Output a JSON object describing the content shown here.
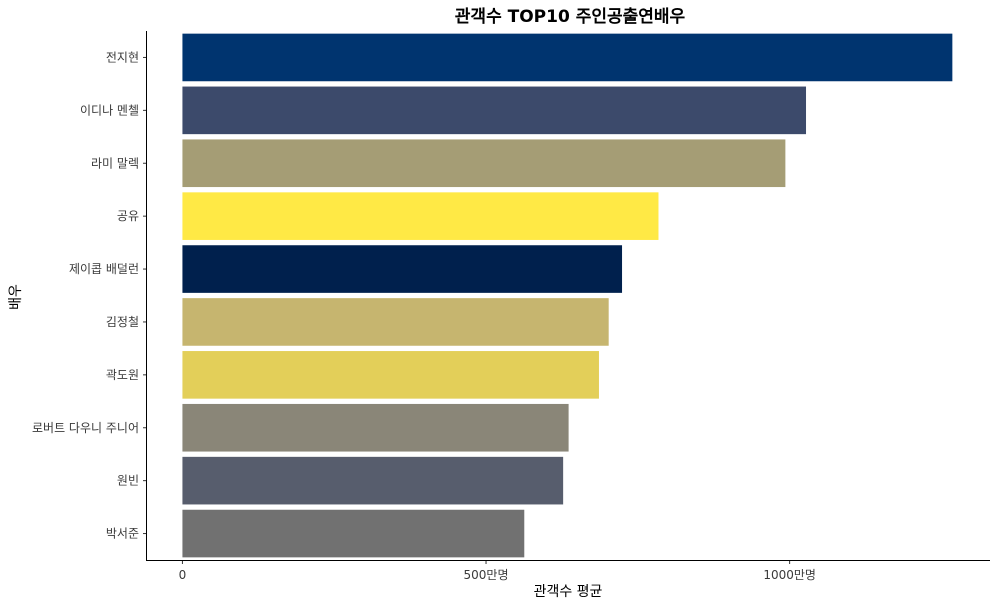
{
  "chart_data": {
    "type": "bar",
    "orientation": "horizontal",
    "title": "관객수 TOP10 주인공출연배우",
    "xlabel": "관객수 평균",
    "ylabel": "배우",
    "xlim": [
      -60,
      1330
    ],
    "xticks": [
      0,
      500,
      1000
    ],
    "xtick_labels": [
      "0",
      "500만명",
      "1000만명"
    ],
    "grid": false,
    "legend": "none",
    "categories": [
      "전지현",
      "이디나 멘첼",
      "라미 말렉",
      "공유",
      "제이콥 배덜런",
      "김정철",
      "곽도원",
      "로버트 다우니 주니어",
      "원빈",
      "박서준"
    ],
    "values": [
      1268,
      1027,
      993,
      784,
      724,
      702,
      686,
      636,
      627,
      563
    ],
    "colors": [
      "#00346f",
      "#3c4a6b",
      "#a59d75",
      "#ffe945",
      "#00204d",
      "#c6b56f",
      "#e3cf59",
      "#8a8678",
      "#575d6d",
      "#717171"
    ]
  }
}
